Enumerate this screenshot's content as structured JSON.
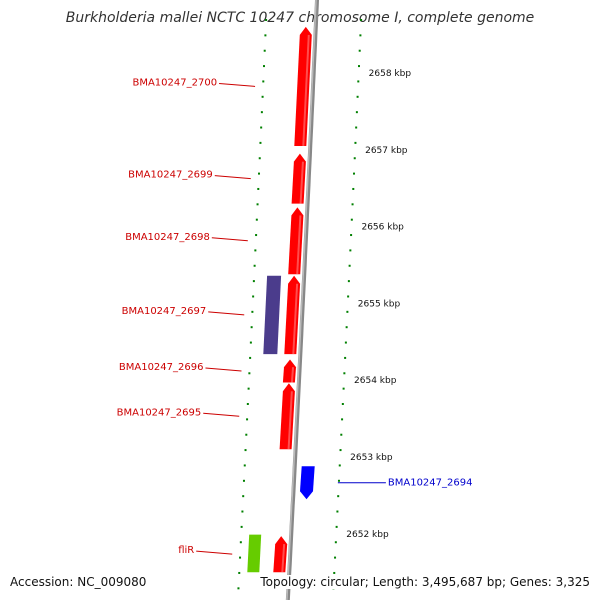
{
  "title": "Burkholderia mallei NCTC 10247 chromosome I, complete genome",
  "accession": "Accession: NC_009080",
  "topology": "Topology: circular; Length: 3,495,687 bp; Genes: 3,325",
  "colors": {
    "forward_gene": "#ff0000",
    "reverse_gene_blue": "#0000ff",
    "reverse_gene_purple": "#4b3c8c",
    "rrna_green": "#66cc00",
    "tick": "#008000",
    "backbone": "#888888",
    "label_forward": "#cc0000",
    "label_reverse": "#0000cc"
  },
  "kbp_ticks": [
    {
      "label": "2658 kbp",
      "pos": 2658
    },
    {
      "label": "2657 kbp",
      "pos": 2657
    },
    {
      "label": "2656 kbp",
      "pos": 2656
    },
    {
      "label": "2655 kbp",
      "pos": 2655
    },
    {
      "label": "2654 kbp",
      "pos": 2654
    },
    {
      "label": "2653 kbp",
      "pos": 2653
    },
    {
      "label": "2652 kbp",
      "pos": 2652
    }
  ],
  "genes": [
    {
      "name": "BMA10247_2700",
      "start": 2657.05,
      "end": 2658.6,
      "strand": "+",
      "lane": "fwd",
      "label_side": "left"
    },
    {
      "name": "BMA10247_2699",
      "start": 2656.3,
      "end": 2656.95,
      "strand": "+",
      "lane": "fwd",
      "label_side": "left"
    },
    {
      "name": "BMA10247_2698",
      "start": 2655.38,
      "end": 2656.25,
      "strand": "+",
      "lane": "fwd",
      "label_side": "left"
    },
    {
      "name": "BMA10247_2697",
      "start": 2654.34,
      "end": 2655.36,
      "strand": "+",
      "lane": "fwd",
      "label_side": "left"
    },
    {
      "name": "",
      "start": 2654.34,
      "end": 2655.36,
      "strand": "-",
      "lane": "rev_purple",
      "label_side": "none"
    },
    {
      "name": "BMA10247_2696",
      "start": 2653.97,
      "end": 2654.27,
      "strand": "+",
      "lane": "fwd",
      "label_side": "left"
    },
    {
      "name": "BMA10247_2695",
      "start": 2653.1,
      "end": 2653.96,
      "strand": "+",
      "lane": "fwd",
      "label_side": "left"
    },
    {
      "name": "BMA10247_2694",
      "start": 2652.45,
      "end": 2652.88,
      "strand": "-",
      "lane": "rev_blue",
      "label_side": "right"
    },
    {
      "name": "fliR",
      "start": 2651.5,
      "end": 2651.97,
      "strand": "+",
      "lane": "fwd",
      "label_side": "left"
    },
    {
      "name": "",
      "start": 2651.5,
      "end": 2651.99,
      "strand": "-",
      "lane": "rrna",
      "label_side": "none"
    }
  ]
}
